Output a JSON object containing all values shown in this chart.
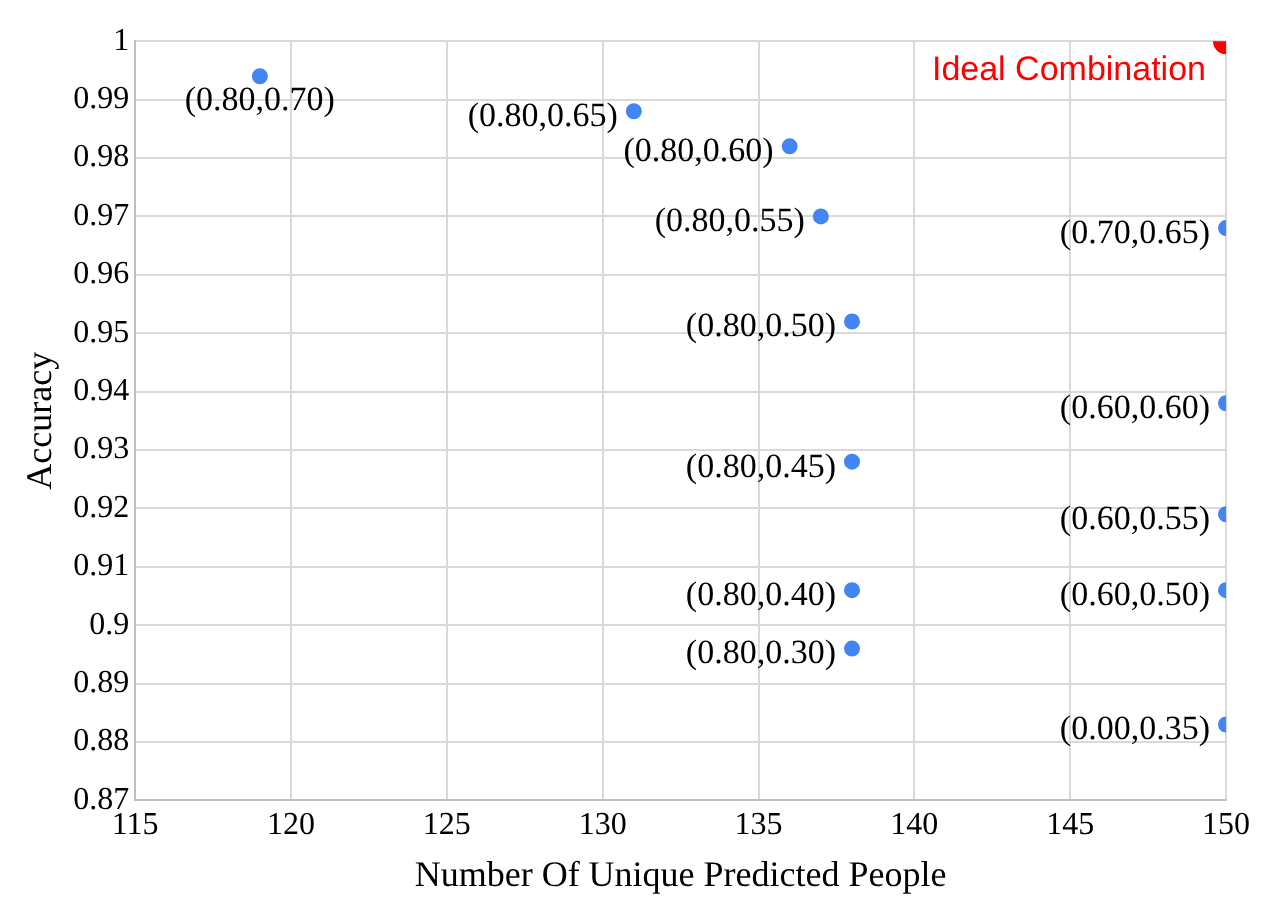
{
  "chart_data": {
    "type": "scatter",
    "xlabel": "Number Of Unique Predicted People",
    "ylabel": "Accuracy",
    "xlim": [
      115,
      150
    ],
    "xticks": [
      115,
      120,
      125,
      130,
      135,
      140,
      145,
      150
    ],
    "ylim": [
      0.87,
      1
    ],
    "yticks": [
      0.87,
      0.88,
      0.89,
      0.9,
      0.91,
      0.92,
      0.93,
      0.94,
      0.95,
      0.96,
      0.97,
      0.98,
      0.99,
      1
    ],
    "grid": true,
    "legend": false,
    "marker": "circle",
    "series": [
      {
        "color": "#4285f4",
        "x": [
          119,
          131,
          136,
          137,
          138,
          138,
          138,
          138,
          150,
          150,
          150,
          150,
          150
        ],
        "values": [
          0.994,
          0.988,
          0.982,
          0.97,
          0.952,
          0.928,
          0.906,
          0.896,
          0.968,
          0.938,
          0.919,
          0.906,
          0.883
        ]
      },
      {
        "name": "Ideal Combination",
        "color": "#ff0000",
        "x": [
          150
        ],
        "values": [
          1
        ]
      }
    ],
    "annotations": [
      {
        "text": "(0.80,0.70)",
        "x": 119,
        "y": 0.994
      },
      {
        "text": "(0.80,0.65)",
        "x": 131,
        "y": 0.988
      },
      {
        "text": "(0.80,0.60)",
        "x": 136,
        "y": 0.982
      },
      {
        "text": "(0.80,0.55)",
        "x": 137,
        "y": 0.97
      },
      {
        "text": "(0.80,0.50)",
        "x": 138,
        "y": 0.952
      },
      {
        "text": "(0.80,0.45)",
        "x": 138,
        "y": 0.928
      },
      {
        "text": "(0.80,0.40)",
        "x": 138,
        "y": 0.906
      },
      {
        "text": "(0.80,0.30)",
        "x": 138,
        "y": 0.896
      },
      {
        "text": "(0.70,0.65)",
        "x": 150,
        "y": 0.968
      },
      {
        "text": "(0.60,0.60)",
        "x": 150,
        "y": 0.938
      },
      {
        "text": "(0.60,0.55)",
        "x": 150,
        "y": 0.919
      },
      {
        "text": "(0.60,0.50)",
        "x": 150,
        "y": 0.906
      },
      {
        "text": "(0.00,0.35)",
        "x": 150,
        "y": 0.883
      }
    ]
  }
}
